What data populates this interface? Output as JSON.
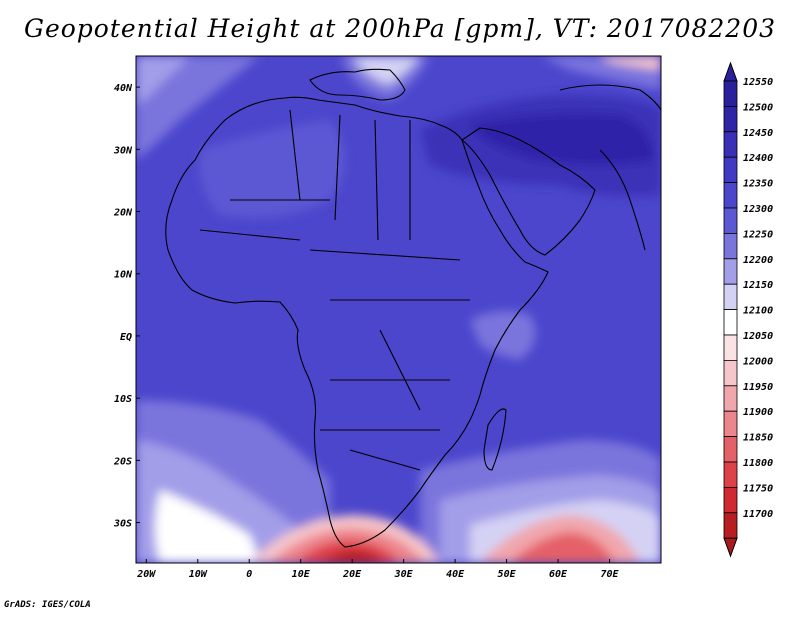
{
  "title": "Geopotential Height at 200hPa [gpm], VT: 2017082203",
  "footer": "GrADS: IGES/COLA",
  "map": {
    "lon_range": [
      -22,
      80
    ],
    "lat_range": [
      -36.5,
      45
    ],
    "lat_ticks": [
      {
        "value": 40,
        "label": "40N"
      },
      {
        "value": 30,
        "label": "30N"
      },
      {
        "value": 20,
        "label": "20N"
      },
      {
        "value": 10,
        "label": "10N"
      },
      {
        "value": 0,
        "label": "EQ"
      },
      {
        "value": -10,
        "label": "10S"
      },
      {
        "value": -20,
        "label": "20S"
      },
      {
        "value": -30,
        "label": "30S"
      }
    ],
    "lon_ticks": [
      {
        "value": -20,
        "label": "20W"
      },
      {
        "value": -10,
        "label": "10W"
      },
      {
        "value": 0,
        "label": "0"
      },
      {
        "value": 10,
        "label": "10E"
      },
      {
        "value": 20,
        "label": "20E"
      },
      {
        "value": 30,
        "label": "30E"
      },
      {
        "value": 40,
        "label": "40E"
      },
      {
        "value": 50,
        "label": "50E"
      },
      {
        "value": 60,
        "label": "60E"
      },
      {
        "value": 70,
        "label": "70E"
      }
    ]
  },
  "colorbar": {
    "levels": [
      {
        "label": "12550",
        "color": "#2a1f9c"
      },
      {
        "label": "12500",
        "color": "#2f24a8"
      },
      {
        "label": "12450",
        "color": "#3a30b8"
      },
      {
        "label": "12400",
        "color": "#4039c4"
      },
      {
        "label": "12350",
        "color": "#4b46cc"
      },
      {
        "label": "12300",
        "color": "#5c58d4"
      },
      {
        "label": "12250",
        "color": "#7a74dd"
      },
      {
        "label": "12200",
        "color": "#a39ee8"
      },
      {
        "label": "12150",
        "color": "#d4d2f4"
      },
      {
        "label": "12100",
        "color": "#ffffff"
      },
      {
        "label": "12050",
        "color": "#fbe3e5"
      },
      {
        "label": "12000",
        "color": "#f6c6ca"
      },
      {
        "label": "11950",
        "color": "#f1a6ac"
      },
      {
        "label": "11900",
        "color": "#ec858c"
      },
      {
        "label": "11850",
        "color": "#e56168"
      },
      {
        "label": "11800",
        "color": "#df4148"
      },
      {
        "label": "11750",
        "color": "#d02a30"
      },
      {
        "label": "11700",
        "color": "#b81d22"
      }
    ],
    "bottom_color": "#a8181c"
  }
}
